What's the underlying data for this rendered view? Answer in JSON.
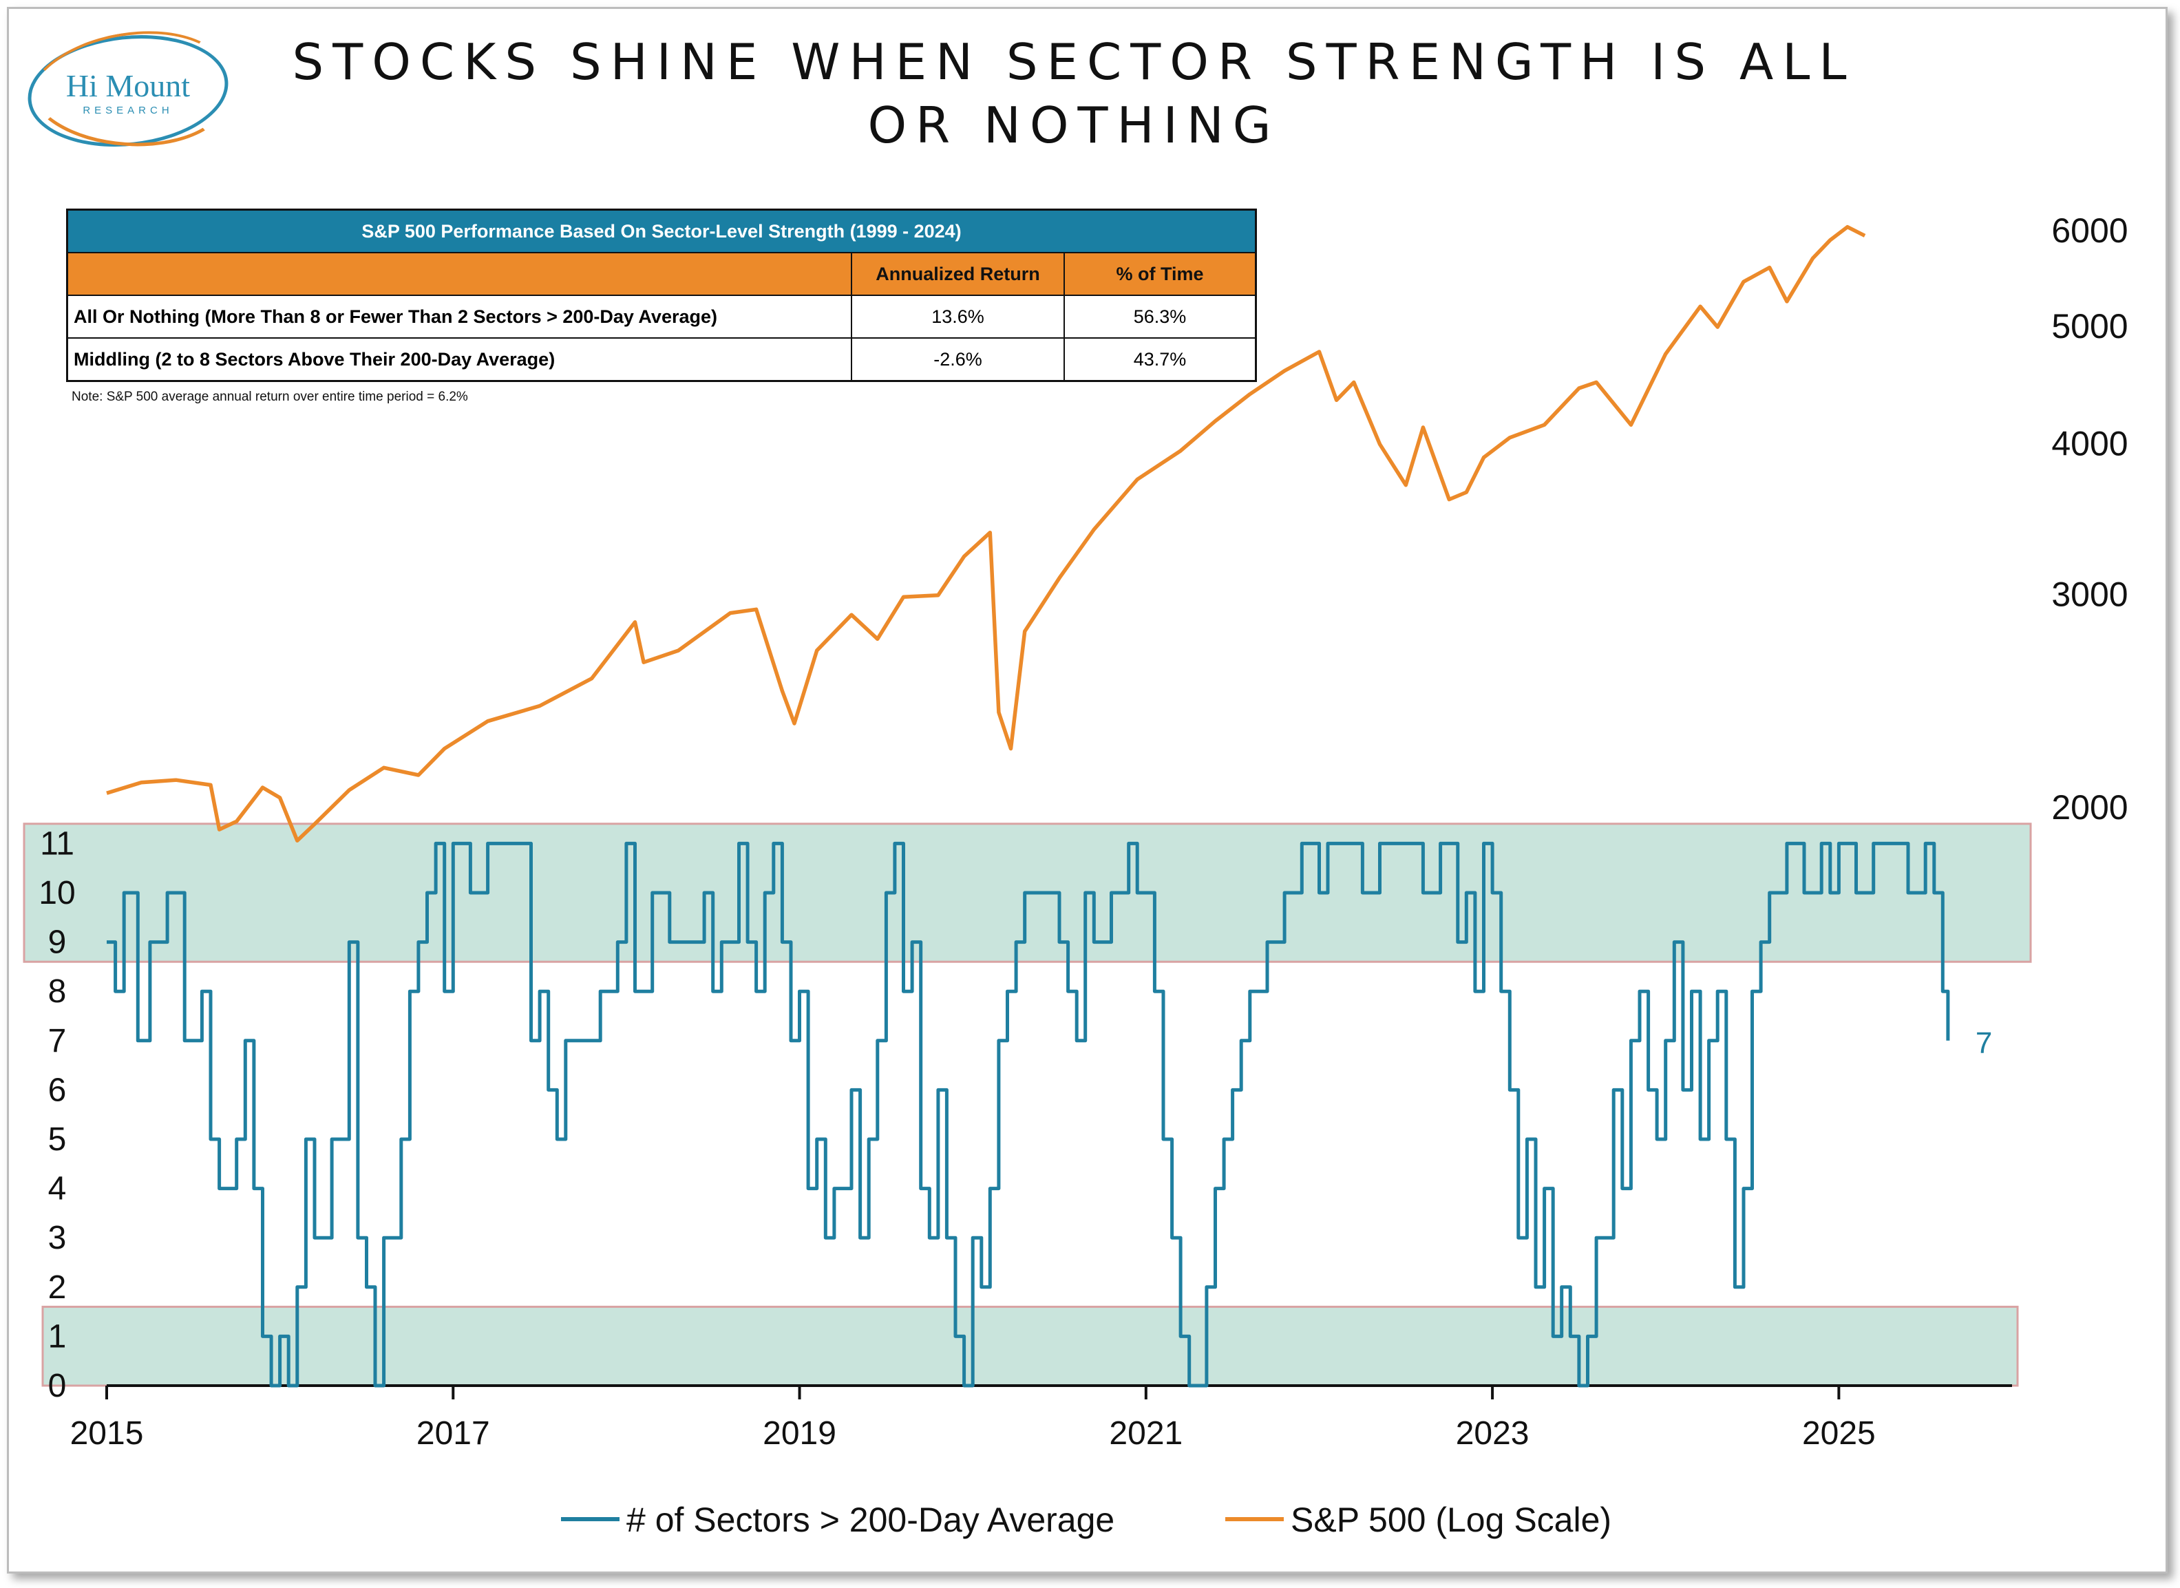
{
  "logo": {
    "name": "Hi Mount",
    "sub": "RESEARCH"
  },
  "title": "STOCKS SHINE WHEN SECTOR STRENGTH IS ALL OR NOTHING",
  "table": {
    "title": "S&P 500 Performance Based On Sector-Level Strength (1999 - 2024)",
    "headers": [
      "",
      "Annualized Return",
      "% of Time"
    ],
    "rows": [
      {
        "label": "All Or Nothing (More Than 8 or Fewer Than 2 Sectors > 200-Day Average)",
        "annualized_return": "13.6%",
        "pct_time": "56.3%"
      },
      {
        "label": "Middling (2 to 8 Sectors Above Their 200-Day Average)",
        "annualized_return": "-2.6%",
        "pct_time": "43.7%"
      }
    ],
    "note": "Note: S&P 500 average annual return over entire time period = 6.2%"
  },
  "chart_data": {
    "type": "line",
    "x_axis": {
      "ticks": [
        "2015",
        "2017",
        "2019",
        "2021",
        "2023",
        "2025"
      ],
      "range": [
        2015.0,
        2026.0
      ]
    },
    "y_left": {
      "ticks": [
        "0",
        "1",
        "2",
        "3",
        "4",
        "5",
        "6",
        "7",
        "8",
        "9",
        "10",
        "11"
      ],
      "range": [
        0,
        11
      ]
    },
    "y_right": {
      "ticks": [
        "2000",
        "3000",
        "4000",
        "5000",
        "6000"
      ],
      "scale": "log",
      "range": [
        2000,
        6000
      ]
    },
    "bands": [
      {
        "from": 8.6,
        "to": 11.4
      },
      {
        "from": 0,
        "to": 1.6
      }
    ],
    "end_label": "7",
    "legend": {
      "position": "bottom"
    },
    "series": [
      {
        "name": "# of Sectors > 200-Day Average",
        "color": "#1f7fa0",
        "axis": "left",
        "points": [
          [
            2015.0,
            9
          ],
          [
            2015.05,
            8
          ],
          [
            2015.1,
            10
          ],
          [
            2015.18,
            7
          ],
          [
            2015.25,
            9
          ],
          [
            2015.35,
            10
          ],
          [
            2015.45,
            7
          ],
          [
            2015.55,
            8
          ],
          [
            2015.6,
            5
          ],
          [
            2015.65,
            4
          ],
          [
            2015.75,
            5
          ],
          [
            2015.8,
            7
          ],
          [
            2015.85,
            4
          ],
          [
            2015.9,
            1
          ],
          [
            2015.95,
            0
          ],
          [
            2016.0,
            1
          ],
          [
            2016.05,
            0
          ],
          [
            2016.1,
            2
          ],
          [
            2016.15,
            5
          ],
          [
            2016.2,
            3
          ],
          [
            2016.3,
            5
          ],
          [
            2016.4,
            9
          ],
          [
            2016.45,
            3
          ],
          [
            2016.5,
            2
          ],
          [
            2016.55,
            0
          ],
          [
            2016.6,
            3
          ],
          [
            2016.65,
            3
          ],
          [
            2016.7,
            5
          ],
          [
            2016.75,
            8
          ],
          [
            2016.8,
            9
          ],
          [
            2016.85,
            10
          ],
          [
            2016.9,
            11
          ],
          [
            2016.95,
            8
          ],
          [
            2017.0,
            11
          ],
          [
            2017.1,
            10
          ],
          [
            2017.2,
            11
          ],
          [
            2017.35,
            11
          ],
          [
            2017.45,
            7
          ],
          [
            2017.5,
            8
          ],
          [
            2017.55,
            6
          ],
          [
            2017.6,
            5
          ],
          [
            2017.65,
            7
          ],
          [
            2017.75,
            7
          ],
          [
            2017.85,
            8
          ],
          [
            2017.95,
            9
          ],
          [
            2018.0,
            11
          ],
          [
            2018.05,
            8
          ],
          [
            2018.15,
            10
          ],
          [
            2018.25,
            9
          ],
          [
            2018.35,
            9
          ],
          [
            2018.45,
            10
          ],
          [
            2018.5,
            8
          ],
          [
            2018.55,
            9
          ],
          [
            2018.65,
            11
          ],
          [
            2018.7,
            9
          ],
          [
            2018.75,
            8
          ],
          [
            2018.8,
            10
          ],
          [
            2018.85,
            11
          ],
          [
            2018.9,
            9
          ],
          [
            2018.95,
            7
          ],
          [
            2019.0,
            8
          ],
          [
            2019.05,
            4
          ],
          [
            2019.1,
            5
          ],
          [
            2019.15,
            3
          ],
          [
            2019.2,
            4
          ],
          [
            2019.3,
            6
          ],
          [
            2019.35,
            3
          ],
          [
            2019.4,
            5
          ],
          [
            2019.45,
            7
          ],
          [
            2019.5,
            10
          ],
          [
            2019.55,
            11
          ],
          [
            2019.6,
            8
          ],
          [
            2019.65,
            9
          ],
          [
            2019.7,
            4
          ],
          [
            2019.75,
            3
          ],
          [
            2019.8,
            6
          ],
          [
            2019.85,
            3
          ],
          [
            2019.9,
            1
          ],
          [
            2019.95,
            0
          ],
          [
            2020.0,
            3
          ],
          [
            2020.05,
            2
          ],
          [
            2020.1,
            4
          ],
          [
            2020.15,
            7
          ],
          [
            2020.2,
            8
          ],
          [
            2020.25,
            9
          ],
          [
            2020.3,
            10
          ],
          [
            2020.4,
            10
          ],
          [
            2020.5,
            9
          ],
          [
            2020.55,
            8
          ],
          [
            2020.6,
            7
          ],
          [
            2020.65,
            10
          ],
          [
            2020.7,
            9
          ],
          [
            2020.8,
            10
          ],
          [
            2020.9,
            11
          ],
          [
            2020.95,
            10
          ],
          [
            2021.0,
            10
          ],
          [
            2021.05,
            8
          ],
          [
            2021.1,
            5
          ],
          [
            2021.15,
            3
          ],
          [
            2021.2,
            1
          ],
          [
            2021.25,
            0
          ],
          [
            2021.3,
            0
          ],
          [
            2021.35,
            2
          ],
          [
            2021.4,
            4
          ],
          [
            2021.45,
            5
          ],
          [
            2021.5,
            6
          ],
          [
            2021.55,
            7
          ],
          [
            2021.6,
            8
          ],
          [
            2021.7,
            9
          ],
          [
            2021.8,
            10
          ],
          [
            2021.9,
            11
          ],
          [
            2022.0,
            10
          ],
          [
            2022.05,
            11
          ],
          [
            2022.15,
            11
          ],
          [
            2022.25,
            10
          ],
          [
            2022.35,
            11
          ],
          [
            2022.5,
            11
          ],
          [
            2022.6,
            10
          ],
          [
            2022.7,
            11
          ],
          [
            2022.8,
            9
          ],
          [
            2022.85,
            10
          ],
          [
            2022.9,
            8
          ],
          [
            2022.95,
            11
          ],
          [
            2023.0,
            10
          ],
          [
            2023.05,
            8
          ],
          [
            2023.1,
            6
          ],
          [
            2023.15,
            3
          ],
          [
            2023.2,
            5
          ],
          [
            2023.25,
            2
          ],
          [
            2023.3,
            4
          ],
          [
            2023.35,
            1
          ],
          [
            2023.4,
            2
          ],
          [
            2023.45,
            1
          ],
          [
            2023.5,
            0
          ],
          [
            2023.55,
            1
          ],
          [
            2023.6,
            3
          ],
          [
            2023.7,
            6
          ],
          [
            2023.75,
            4
          ],
          [
            2023.8,
            7
          ],
          [
            2023.85,
            8
          ],
          [
            2023.9,
            6
          ],
          [
            2023.95,
            5
          ],
          [
            2024.0,
            7
          ],
          [
            2024.05,
            9
          ],
          [
            2024.1,
            6
          ],
          [
            2024.15,
            8
          ],
          [
            2024.2,
            5
          ],
          [
            2024.25,
            7
          ],
          [
            2024.3,
            8
          ],
          [
            2024.35,
            5
          ],
          [
            2024.4,
            2
          ],
          [
            2024.45,
            4
          ],
          [
            2024.5,
            8
          ],
          [
            2024.55,
            9
          ],
          [
            2024.6,
            10
          ],
          [
            2024.7,
            11
          ],
          [
            2024.8,
            10
          ],
          [
            2024.9,
            11
          ],
          [
            2024.95,
            10
          ],
          [
            2025.0,
            11
          ],
          [
            2025.1,
            10
          ],
          [
            2025.2,
            11
          ],
          [
            2025.3,
            11
          ],
          [
            2025.4,
            10
          ],
          [
            2025.5,
            11
          ],
          [
            2025.55,
            10
          ],
          [
            2025.6,
            8
          ],
          [
            2025.63,
            7
          ]
        ]
      },
      {
        "name": "S&P 500 (Log Scale)",
        "color": "#ec8a2a",
        "axis": "right",
        "points": [
          [
            2015.0,
            2058
          ],
          [
            2015.2,
            2100
          ],
          [
            2015.4,
            2110
          ],
          [
            2015.6,
            2090
          ],
          [
            2015.65,
            1920
          ],
          [
            2015.75,
            1950
          ],
          [
            2015.9,
            2080
          ],
          [
            2016.0,
            2040
          ],
          [
            2016.1,
            1880
          ],
          [
            2016.2,
            1940
          ],
          [
            2016.4,
            2070
          ],
          [
            2016.6,
            2160
          ],
          [
            2016.8,
            2130
          ],
          [
            2016.95,
            2240
          ],
          [
            2017.2,
            2360
          ],
          [
            2017.5,
            2430
          ],
          [
            2017.8,
            2560
          ],
          [
            2018.05,
            2850
          ],
          [
            2018.1,
            2640
          ],
          [
            2018.3,
            2700
          ],
          [
            2018.6,
            2900
          ],
          [
            2018.75,
            2920
          ],
          [
            2018.9,
            2500
          ],
          [
            2018.97,
            2350
          ],
          [
            2019.1,
            2700
          ],
          [
            2019.3,
            2890
          ],
          [
            2019.45,
            2760
          ],
          [
            2019.6,
            2990
          ],
          [
            2019.8,
            3000
          ],
          [
            2019.95,
            3230
          ],
          [
            2020.1,
            3380
          ],
          [
            2020.15,
            2400
          ],
          [
            2020.22,
            2240
          ],
          [
            2020.3,
            2800
          ],
          [
            2020.5,
            3100
          ],
          [
            2020.7,
            3400
          ],
          [
            2020.95,
            3740
          ],
          [
            2021.2,
            3950
          ],
          [
            2021.4,
            4180
          ],
          [
            2021.6,
            4400
          ],
          [
            2021.8,
            4600
          ],
          [
            2022.0,
            4770
          ],
          [
            2022.1,
            4350
          ],
          [
            2022.2,
            4500
          ],
          [
            2022.35,
            4000
          ],
          [
            2022.5,
            3700
          ],
          [
            2022.6,
            4130
          ],
          [
            2022.75,
            3600
          ],
          [
            2022.85,
            3650
          ],
          [
            2022.95,
            3900
          ],
          [
            2023.1,
            4050
          ],
          [
            2023.3,
            4150
          ],
          [
            2023.5,
            4450
          ],
          [
            2023.6,
            4500
          ],
          [
            2023.8,
            4150
          ],
          [
            2024.0,
            4750
          ],
          [
            2024.2,
            5200
          ],
          [
            2024.3,
            5000
          ],
          [
            2024.45,
            5450
          ],
          [
            2024.6,
            5600
          ],
          [
            2024.7,
            5250
          ],
          [
            2024.85,
            5700
          ],
          [
            2024.95,
            5900
          ],
          [
            2025.05,
            6050
          ],
          [
            2025.15,
            5950
          ]
        ]
      }
    ]
  }
}
